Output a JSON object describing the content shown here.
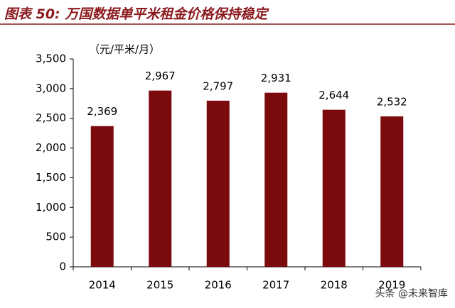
{
  "chart_data": {
    "type": "bar",
    "title": "图表 50:  万国数据单平米租金价格保持稳定",
    "unit_label": "（元/平米/月）",
    "watermark": "头条 @未来智库",
    "categories": [
      "2014",
      "2015",
      "2016",
      "2017",
      "2018",
      "2019"
    ],
    "values": [
      2369,
      2967,
      2797,
      2931,
      2644,
      2532
    ],
    "value_labels": [
      "2,369",
      "2,967",
      "2,797",
      "2,931",
      "2,644",
      "2,532"
    ],
    "color": "#7a0a0c",
    "ylim": [
      0,
      3500
    ],
    "yticks": [
      0,
      500,
      {
        "value": 1000,
        "label": "1,000"
      },
      {
        "value": 1500,
        "label": "1,500"
      },
      {
        "value": 2000,
        "label": "2,000"
      },
      {
        "value": 2500,
        "label": "2,500"
      },
      {
        "value": 3000,
        "label": "3,000"
      },
      {
        "value": 3500,
        "label": "3,500"
      }
    ],
    "grid": false
  }
}
